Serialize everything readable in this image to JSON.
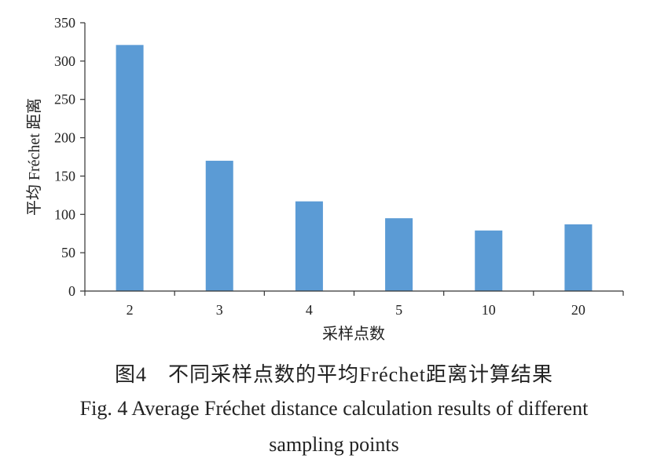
{
  "chart_data": {
    "type": "bar",
    "categories": [
      "2",
      "3",
      "4",
      "5",
      "10",
      "20"
    ],
    "values": [
      321,
      170,
      117,
      95,
      79,
      87
    ],
    "xlabel": "采样点数",
    "ylabel": "平均 Fréchet 距离",
    "ylim": [
      0,
      350
    ],
    "yticks": [
      0,
      50,
      100,
      150,
      200,
      250,
      300,
      350
    ],
    "bar_color": "#5b9bd5",
    "grid": false,
    "legend": "none"
  },
  "caption": {
    "cn": "图4　不同采样点数的平均Fréchet距离计算结果",
    "en_line1": "Fig. 4  Average Fréchet distance calculation results of different",
    "en_line2": "sampling points"
  }
}
